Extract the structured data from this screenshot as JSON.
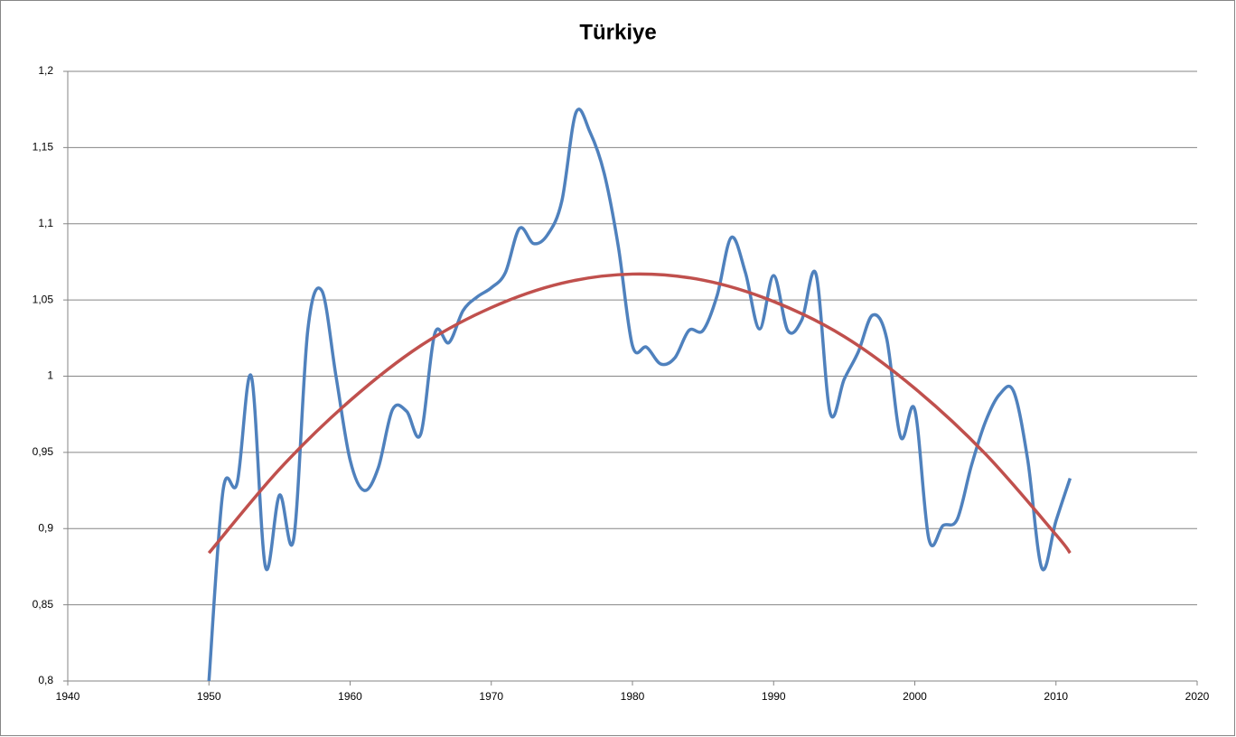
{
  "chart_data": {
    "type": "line",
    "title": "Türkiye",
    "xlim": [
      1940,
      2020
    ],
    "xticks": [
      1940,
      1950,
      1960,
      1970,
      1980,
      1990,
      2000,
      2010,
      2020
    ],
    "ylim": [
      0.8,
      1.2
    ],
    "yticks": [
      {
        "value": 0.8,
        "label": "0,8"
      },
      {
        "value": 0.85,
        "label": "0,85"
      },
      {
        "value": 0.9,
        "label": "0,9"
      },
      {
        "value": 0.95,
        "label": "0,95"
      },
      1,
      {
        "value": 1.05,
        "label": "1,05"
      },
      {
        "value": 1.1,
        "label": "1,1"
      },
      {
        "value": 1.15,
        "label": "1,15"
      },
      {
        "value": 1.2,
        "label": "1,2"
      }
    ],
    "grid": true,
    "series": [
      {
        "color": "#4f81bd",
        "x": [
          1950,
          1951,
          1952,
          1953,
          1954,
          1955,
          1956,
          1957,
          1958,
          1959,
          1960,
          1961,
          1962,
          1963,
          1964,
          1965,
          1966,
          1967,
          1968,
          1969,
          1970,
          1971,
          1972,
          1973,
          1974,
          1975,
          1976,
          1977,
          1978,
          1979,
          1980,
          1981,
          1982,
          1983,
          1984,
          1985,
          1986,
          1987,
          1988,
          1989,
          1990,
          1991,
          1992,
          1993,
          1994,
          1995,
          1996,
          1997,
          1998,
          1999,
          2000,
          2001,
          2002,
          2003,
          2004,
          2005,
          2006,
          2007,
          2008,
          2009,
          2010,
          2011
        ],
        "values": [
          0.8,
          0.925,
          0.93,
          1.0,
          0.875,
          0.922,
          0.893,
          1.03,
          1.056,
          1.0,
          0.945,
          0.925,
          0.94,
          0.978,
          0.977,
          0.962,
          1.028,
          1.022,
          1.043,
          1.052,
          1.058,
          1.068,
          1.097,
          1.087,
          1.093,
          1.115,
          1.173,
          1.16,
          1.133,
          1.085,
          1.02,
          1.019,
          1.008,
          1.012,
          1.03,
          1.03,
          1.053,
          1.091,
          1.068,
          1.031,
          1.066,
          1.03,
          1.037,
          1.067,
          0.976,
          0.998,
          1.016,
          1.04,
          1.025,
          0.96,
          0.978,
          0.893,
          0.902,
          0.906,
          0.941,
          0.97,
          0.988,
          0.99,
          0.945,
          0.874,
          0.905,
          0.933
        ]
      },
      {
        "color": "#c0504d",
        "x": [
          1950,
          1955,
          1960,
          1965,
          1970,
          1975,
          1980,
          1985,
          1990,
          1995,
          2000,
          2005,
          2010,
          2011
        ],
        "values": [
          0.884,
          0.939,
          0.984,
          1.02,
          1.045,
          1.061,
          1.067,
          1.063,
          1.049,
          1.026,
          0.992,
          0.949,
          0.896,
          0.884
        ]
      }
    ]
  }
}
